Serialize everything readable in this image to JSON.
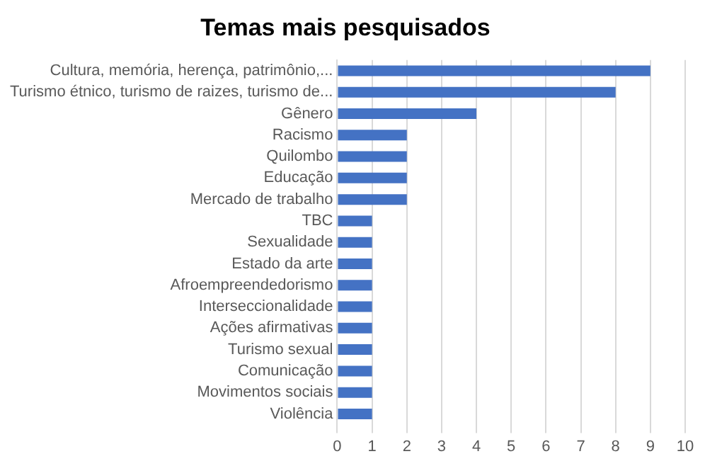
{
  "chart_data": {
    "type": "bar",
    "orientation": "horizontal",
    "title": "Temas mais pesquisados",
    "categories": [
      "Cultura, memória, herença, patrimônio,...",
      "Turismo étnico, turismo de raizes, turismo de...",
      "Gênero",
      "Racismo",
      "Quilombo",
      "Educação",
      "Mercado de trabalho",
      "TBC",
      "Sexualidade",
      "Estado da arte",
      "Afroempreendedorismo",
      "Interseccionalidade",
      "Ações afirmativas",
      "Turismo sexual",
      "Comunicação",
      "Movimentos sociais",
      "Violência"
    ],
    "values": [
      9,
      8,
      4,
      2,
      2,
      2,
      2,
      1,
      1,
      1,
      1,
      1,
      1,
      1,
      1,
      1,
      1
    ],
    "color": "#4472c4",
    "xlim": [
      0,
      10
    ],
    "xticks": [
      0,
      1,
      2,
      3,
      4,
      5,
      6,
      7,
      8,
      9,
      10
    ],
    "grid": "x",
    "legend": false
  }
}
